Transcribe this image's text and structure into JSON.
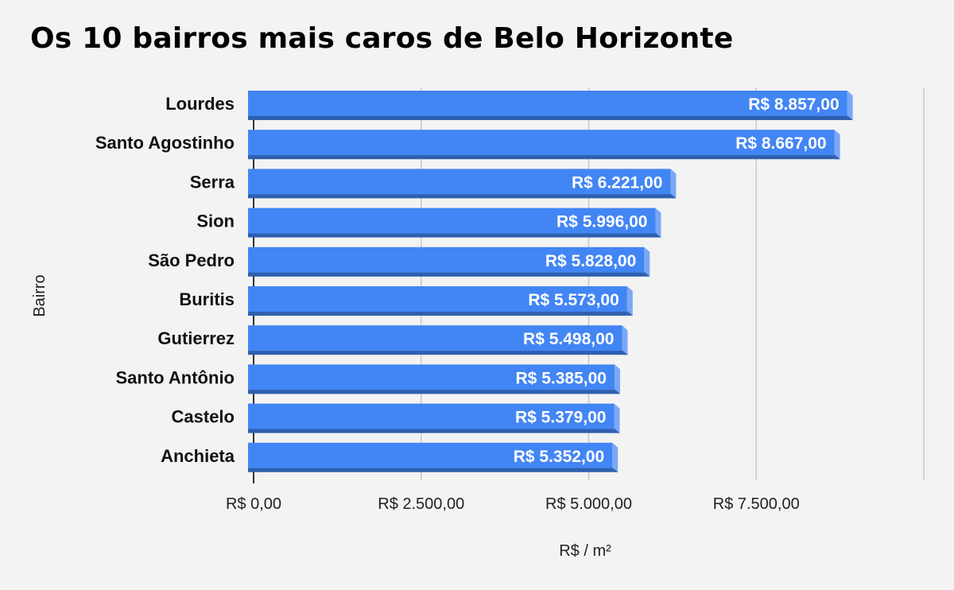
{
  "chart_data": {
    "type": "bar",
    "orientation": "horizontal",
    "title": "Os 10 bairros mais caros de Belo Horizonte",
    "xlabel": "R$ / m²",
    "ylabel": "Bairro",
    "categories": [
      "Lourdes",
      "Santo Agostinho",
      "Serra",
      "Sion",
      "São Pedro",
      "Buritis",
      "Gutierrez",
      "Santo Antônio",
      "Castelo",
      "Anchieta"
    ],
    "values": [
      8857,
      8667,
      6221,
      5996,
      5828,
      5573,
      5498,
      5385,
      5379,
      5352
    ],
    "data_labels": [
      "R$ 8.857,00",
      "R$ 8.667,00",
      "R$ 6.221,00",
      "R$ 5.996,00",
      "R$ 5.828,00",
      "R$ 5.573,00",
      "R$ 5.498,00",
      "R$ 5.385,00",
      "R$ 5.379,00",
      "R$ 5.352,00"
    ],
    "xlim": [
      0,
      10000
    ],
    "xticks": [
      0,
      2500,
      5000,
      7500,
      10000
    ],
    "xtick_labels": [
      "R$ 0,00",
      "R$ 2.500,00",
      "R$ 5.000,00",
      "R$ 7.500,00",
      ""
    ],
    "grid": true,
    "colors": {
      "bar": "#4285f4",
      "bar_shade": "#2f5fae",
      "bar_side": "#7aa8f7",
      "grid": "#c8c8c8",
      "axis": "#333333",
      "background": "#f3f3f3"
    }
  }
}
